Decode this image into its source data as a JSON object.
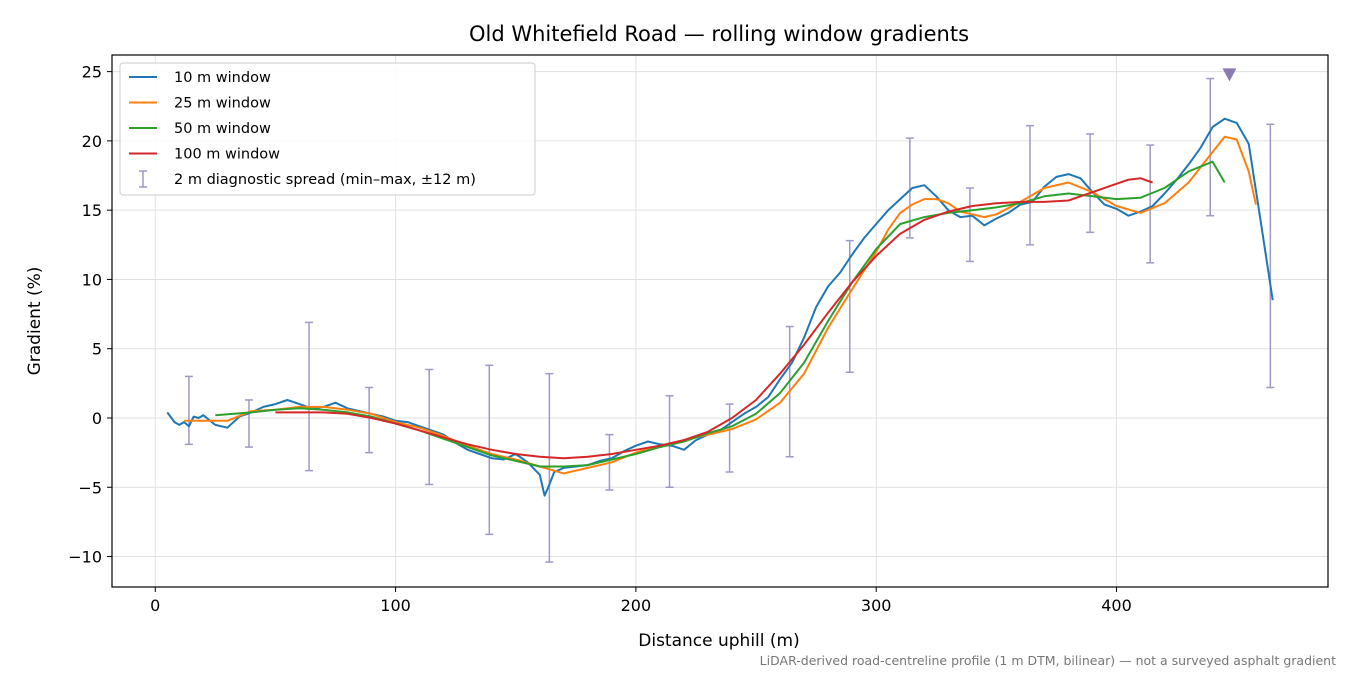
{
  "chart_data": {
    "type": "line",
    "title": "Old Whitefield Road — rolling window gradients",
    "xlabel": "Distance uphill (m)",
    "ylabel": "Gradient (%)",
    "footnote": "LiDAR-derived road-centreline profile (1 m DTM, bilinear) — not a surveyed asphalt gradient",
    "xlim": [
      -18,
      488
    ],
    "ylim": [
      -12.2,
      26.2
    ],
    "xticks": [
      0,
      100,
      200,
      300,
      400
    ],
    "yticks": [
      -10,
      -5,
      0,
      5,
      10,
      15,
      20,
      25
    ],
    "ytick_labels": [
      "−10",
      "−5",
      "0",
      "5",
      "10",
      "15",
      "20",
      "25"
    ],
    "grid": true,
    "legend_position": "upper-left",
    "series": [
      {
        "name": "10 m window",
        "color": "#1f77b4",
        "x": [
          5,
          8,
          10,
          12,
          14,
          16,
          18,
          20,
          25,
          30,
          35,
          40,
          45,
          50,
          55,
          60,
          65,
          70,
          75,
          80,
          85,
          90,
          95,
          100,
          105,
          110,
          115,
          120,
          125,
          130,
          135,
          140,
          145,
          150,
          155,
          160,
          162,
          164,
          166,
          170,
          175,
          180,
          185,
          190,
          195,
          200,
          205,
          210,
          215,
          220,
          225,
          230,
          235,
          240,
          245,
          250,
          255,
          260,
          265,
          270,
          275,
          280,
          285,
          290,
          295,
          300,
          305,
          310,
          315,
          320,
          325,
          330,
          335,
          340,
          345,
          350,
          355,
          360,
          365,
          370,
          375,
          380,
          385,
          390,
          395,
          400,
          405,
          410,
          415,
          420,
          425,
          430,
          435,
          440,
          445,
          450,
          455,
          460,
          465
        ],
        "y": [
          0.4,
          -0.3,
          -0.5,
          -0.3,
          -0.6,
          0.1,
          0.0,
          0.2,
          -0.5,
          -0.7,
          0.1,
          0.4,
          0.8,
          1.0,
          1.3,
          1.0,
          0.7,
          0.8,
          1.1,
          0.7,
          0.5,
          0.3,
          0.1,
          -0.2,
          -0.3,
          -0.6,
          -0.9,
          -1.2,
          -1.8,
          -2.3,
          -2.6,
          -2.9,
          -3.0,
          -2.6,
          -3.2,
          -4.1,
          -5.6,
          -4.8,
          -3.9,
          -3.6,
          -3.5,
          -3.4,
          -3.1,
          -2.9,
          -2.4,
          -2.0,
          -1.7,
          -1.9,
          -2.0,
          -2.3,
          -1.6,
          -1.2,
          -0.9,
          -0.3,
          0.3,
          0.8,
          1.5,
          2.8,
          4.0,
          5.8,
          8.0,
          9.5,
          10.5,
          11.8,
          13.0,
          14.0,
          15.0,
          15.8,
          16.6,
          16.8,
          16.0,
          15.0,
          14.5,
          14.6,
          13.9,
          14.4,
          14.8,
          15.4,
          15.6,
          16.7,
          17.4,
          17.6,
          17.3,
          16.3,
          15.4,
          15.1,
          14.6,
          14.9,
          15.3,
          16.2,
          17.2,
          18.3,
          19.5,
          21.0,
          21.6,
          21.3,
          19.8,
          14.2,
          8.5
        ]
      },
      {
        "name": "25 m window",
        "color": "#ff7f0e",
        "x": [
          12,
          20,
          30,
          40,
          50,
          60,
          70,
          80,
          90,
          100,
          110,
          120,
          130,
          140,
          150,
          160,
          170,
          180,
          190,
          200,
          210,
          220,
          230,
          240,
          250,
          260,
          270,
          280,
          290,
          300,
          305,
          310,
          315,
          320,
          325,
          330,
          335,
          340,
          345,
          350,
          360,
          370,
          380,
          390,
          400,
          410,
          420,
          430,
          440,
          445,
          450,
          455,
          458
        ],
        "y": [
          -0.2,
          -0.2,
          -0.2,
          0.5,
          0.6,
          0.8,
          0.8,
          0.6,
          0.3,
          -0.3,
          -0.7,
          -1.3,
          -2.0,
          -2.6,
          -3.0,
          -3.5,
          -4.0,
          -3.6,
          -3.2,
          -2.5,
          -2.0,
          -1.6,
          -1.2,
          -0.8,
          -0.1,
          1.1,
          3.2,
          6.5,
          9.3,
          12.0,
          13.6,
          14.8,
          15.4,
          15.8,
          15.8,
          15.5,
          14.9,
          14.7,
          14.5,
          14.7,
          15.6,
          16.6,
          17.0,
          16.3,
          15.3,
          14.8,
          15.5,
          17.0,
          19.2,
          20.3,
          20.1,
          17.8,
          15.4
        ]
      },
      {
        "name": "50 m window",
        "color": "#2ca02c",
        "x": [
          25,
          40,
          50,
          60,
          70,
          80,
          90,
          100,
          110,
          120,
          130,
          140,
          150,
          160,
          170,
          180,
          190,
          200,
          210,
          220,
          230,
          240,
          250,
          260,
          270,
          280,
          290,
          300,
          310,
          320,
          330,
          340,
          350,
          360,
          370,
          380,
          390,
          400,
          410,
          420,
          430,
          440,
          445
        ],
        "y": [
          0.2,
          0.4,
          0.6,
          0.7,
          0.6,
          0.4,
          0.1,
          -0.4,
          -0.9,
          -1.5,
          -2.1,
          -2.7,
          -3.1,
          -3.5,
          -3.5,
          -3.4,
          -3.0,
          -2.6,
          -2.1,
          -1.7,
          -1.1,
          -0.6,
          0.3,
          1.8,
          4.0,
          7.0,
          9.8,
          12.2,
          14.0,
          14.5,
          14.8,
          15.0,
          15.2,
          15.5,
          16.0,
          16.2,
          16.0,
          15.8,
          15.9,
          16.6,
          17.8,
          18.5,
          17.0
        ]
      },
      {
        "name": "100 m window",
        "color": "#d62728",
        "x": [
          50,
          60,
          70,
          80,
          90,
          100,
          110,
          120,
          130,
          140,
          150,
          160,
          170,
          180,
          190,
          200,
          210,
          220,
          230,
          240,
          250,
          260,
          270,
          280,
          290,
          300,
          310,
          320,
          330,
          340,
          350,
          360,
          370,
          380,
          390,
          400,
          405,
          410,
          415
        ],
        "y": [
          0.4,
          0.4,
          0.4,
          0.3,
          0.0,
          -0.4,
          -0.9,
          -1.4,
          -1.9,
          -2.3,
          -2.6,
          -2.8,
          -2.9,
          -2.8,
          -2.6,
          -2.3,
          -2.0,
          -1.6,
          -1.0,
          0.0,
          1.3,
          3.2,
          5.3,
          7.6,
          9.8,
          11.7,
          13.3,
          14.3,
          14.9,
          15.3,
          15.5,
          15.6,
          15.6,
          15.7,
          16.3,
          16.9,
          17.2,
          17.3,
          17.0
        ]
      }
    ],
    "diagnostic_spread": {
      "name": "2 m diagnostic spread (min–max, ±12 m)",
      "color": "#9e9ac8",
      "points": [
        {
          "x": 14,
          "low": -1.9,
          "high": 3.0
        },
        {
          "x": 39,
          "low": -2.1,
          "high": 1.3
        },
        {
          "x": 64,
          "low": -3.8,
          "high": 6.9
        },
        {
          "x": 89,
          "low": -2.5,
          "high": 2.2
        },
        {
          "x": 114,
          "low": -4.8,
          "high": 3.5
        },
        {
          "x": 139,
          "low": -8.4,
          "high": 3.8
        },
        {
          "x": 164,
          "low": -10.4,
          "high": 3.2
        },
        {
          "x": 189,
          "low": -5.2,
          "high": -1.2
        },
        {
          "x": 214,
          "low": -5.0,
          "high": 1.6
        },
        {
          "x": 239,
          "low": -3.9,
          "high": 1.0
        },
        {
          "x": 264,
          "low": -2.8,
          "high": 6.6
        },
        {
          "x": 289,
          "low": 3.3,
          "high": 12.8
        },
        {
          "x": 314,
          "low": 13.0,
          "high": 20.2
        },
        {
          "x": 339,
          "low": 11.3,
          "high": 16.6
        },
        {
          "x": 364,
          "low": 12.5,
          "high": 21.1
        },
        {
          "x": 389,
          "low": 13.4,
          "high": 20.5
        },
        {
          "x": 414,
          "low": 11.2,
          "high": 19.7
        },
        {
          "x": 439,
          "low": 14.6,
          "high": 24.5
        },
        {
          "x": 464,
          "low": 2.2,
          "high": 21.2
        }
      ]
    },
    "peak_marker": {
      "x": 447,
      "y": 24.8,
      "color": "#8c7bb2",
      "shape": "triangle-down"
    }
  }
}
